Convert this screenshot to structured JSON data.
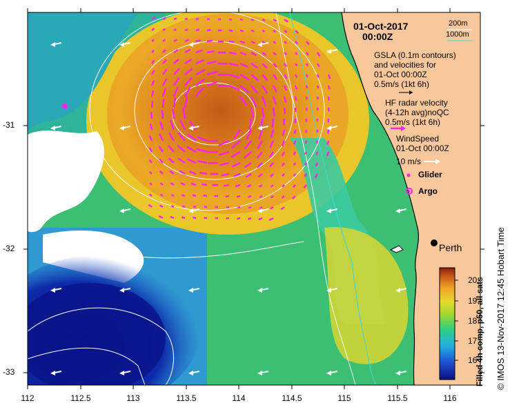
{
  "map": {
    "date_title": "01-Oct-2017",
    "time_title": "00:00Z",
    "bathy_200": "200m",
    "bathy_1000": "1000m",
    "gsla_line1": "GSLA (0.1m contours)",
    "gsla_line2": "and velocities for",
    "gsla_line3": "01-Oct 00:00Z",
    "gsla_scale": "0.5m/s (1kt 6h)",
    "hf_line1": "HF radar velocity",
    "hf_line2": "(4-12h avg)noQC",
    "hf_scale": "0.5m/s (1kt 6h)",
    "wind_line1": "WindSpeed",
    "wind_line2": "01-Oct 00:00Z",
    "wind_scale": "10 m/s",
    "glider_label": "Glider",
    "argo_label": "Argo",
    "city_label": "Perth",
    "side_note": "© IMOS 13-Nov-2017 12:45 Hobart Time",
    "colorbar_title": "Filled 4h comp, p50, all sats",
    "x_ticks": [
      "112",
      "112.5",
      "113",
      "113.5",
      "114",
      "114.5",
      "115",
      "115.5",
      "116"
    ],
    "y_ticks": [
      "-31",
      "-32",
      "-33"
    ],
    "colorbar_ticks": [
      "20",
      "19",
      "18",
      "17",
      "16"
    ],
    "colors": {
      "land": "#f9c79c",
      "hf_arrows": "#ff22ee",
      "bathy_line": "#3fd8d8",
      "warm": "#d07a18",
      "cold": "#0a1f9a"
    }
  }
}
